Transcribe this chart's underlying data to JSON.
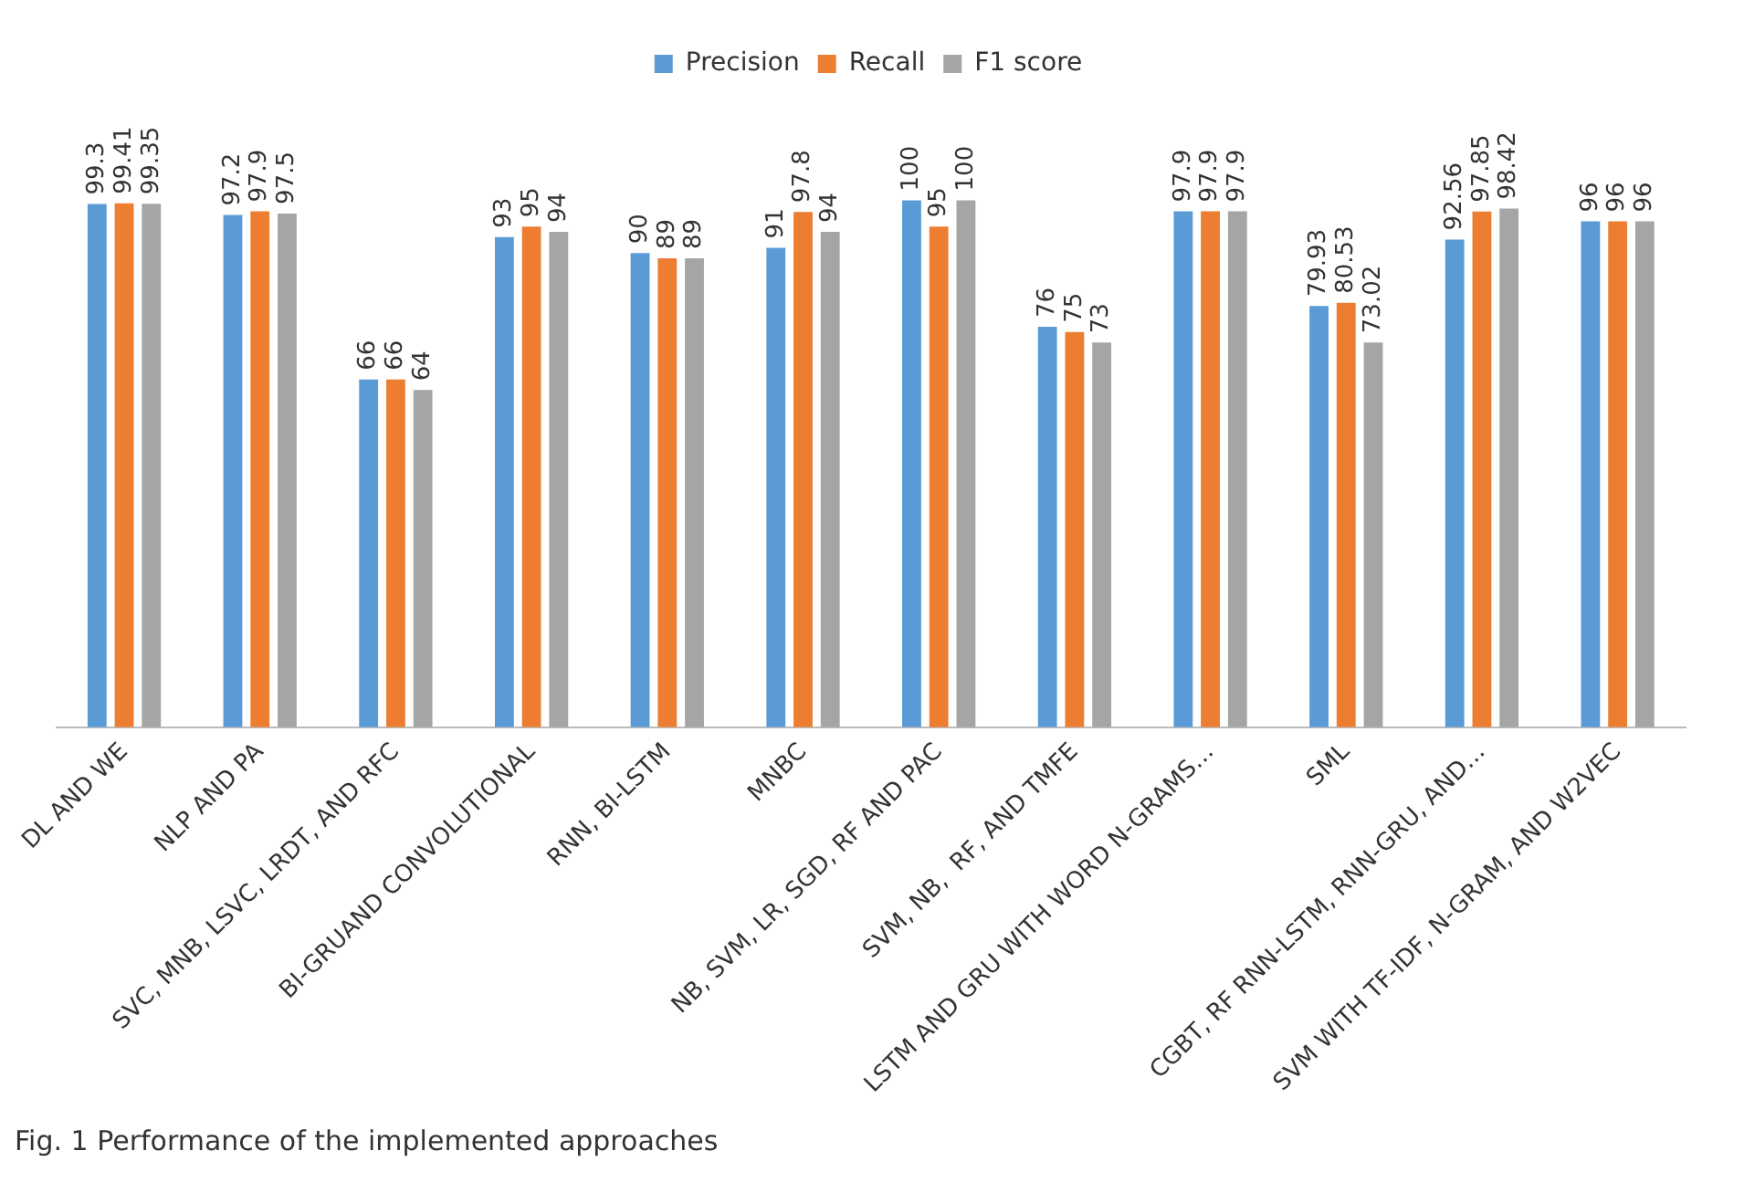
{
  "chart_data": {
    "type": "bar",
    "categories": [
      "DL AND WE",
      "NLP AND PA",
      "SVC, MNB, LSVC, LRDT, AND RFC",
      "BI-GRUAND CONVOLUTIONAL",
      "RNN, BI-LSTM",
      "MNBC",
      "NB, SVM, LR, SGD, RF AND PAC",
      "SVM, NB,  RF, AND TMFE",
      "LSTM AND GRU WITH WORD N-GRAMS…",
      "SML",
      "CGBT, RF RNN-LSTM, RNN-GRU, AND…",
      "SVM WITH TF-IDF, N-GRAM, AND W2VEC"
    ],
    "series": [
      {
        "name": "Precision",
        "color": "#5b9bd5",
        "values": [
          99.3,
          97.2,
          66,
          93,
          90,
          91,
          100,
          76,
          97.9,
          79.93,
          92.56,
          96
        ]
      },
      {
        "name": "Recall",
        "color": "#ed7d31",
        "values": [
          99.41,
          97.9,
          66,
          95,
          89,
          97.8,
          95,
          75,
          97.9,
          80.53,
          97.85,
          96
        ]
      },
      {
        "name": "F1 score",
        "color": "#a5a5a5",
        "values": [
          99.35,
          97.5,
          64,
          94,
          89,
          94,
          100,
          73,
          97.9,
          73.02,
          98.42,
          96
        ]
      }
    ],
    "data_labels": true,
    "legend": "top",
    "grid": false,
    "annotations": [
      "Fig. 1  Performance of the implemented approaches"
    ]
  }
}
